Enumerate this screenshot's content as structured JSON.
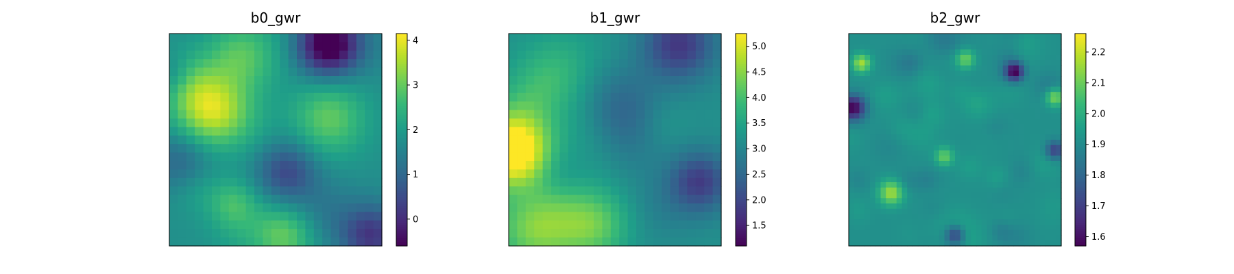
{
  "figure": {
    "background": "#ffffff",
    "colormap": "viridis",
    "colormap_stops": [
      "#440154",
      "#482878",
      "#3e4989",
      "#31688e",
      "#26828e",
      "#1f9e89",
      "#35b779",
      "#6ece58",
      "#b5de2b",
      "#fde725"
    ]
  },
  "chart_data": [
    {
      "type": "heatmap",
      "title": "b0_gwr",
      "xlabel": "",
      "ylabel": "",
      "grid": false,
      "axis_ticks": "hidden",
      "grid_size": [
        25,
        25
      ],
      "colorbar": {
        "vmin": -0.6,
        "vmax": 4.15,
        "ticks": [
          0,
          1,
          2,
          3,
          4
        ],
        "tick_labels": [
          "0",
          "1",
          "2",
          "3",
          "4"
        ]
      },
      "seed": 11,
      "features": [
        {
          "x": 0.2,
          "y": 0.35,
          "amp": 2.2,
          "s": 0.12
        },
        {
          "x": 0.75,
          "y": 0.4,
          "amp": 1.2,
          "s": 0.12
        },
        {
          "x": 0.55,
          "y": 0.95,
          "amp": 1.2,
          "s": 0.1
        },
        {
          "x": 0.3,
          "y": 0.8,
          "amp": 0.8,
          "s": 0.08
        },
        {
          "x": 0.35,
          "y": 0.1,
          "amp": 1.0,
          "s": 0.12
        },
        {
          "x": 0.75,
          "y": 0.05,
          "amp": -2.8,
          "s": 0.1
        },
        {
          "x": 0.55,
          "y": 0.65,
          "amp": -1.3,
          "s": 0.1
        },
        {
          "x": 0.95,
          "y": 0.95,
          "amp": -1.6,
          "s": 0.1
        },
        {
          "x": 0.05,
          "y": 0.6,
          "amp": -0.8,
          "s": 0.1
        },
        {
          "x": 0.02,
          "y": 0.2,
          "amp": -0.7,
          "s": 0.07
        }
      ]
    },
    {
      "type": "heatmap",
      "title": "b1_gwr",
      "xlabel": "",
      "ylabel": "",
      "grid": false,
      "axis_ticks": "hidden",
      "grid_size": [
        25,
        25
      ],
      "colorbar": {
        "vmin": 1.1,
        "vmax": 5.25,
        "ticks": [
          1.5,
          2.0,
          2.5,
          3.0,
          3.5,
          4.0,
          4.5,
          5.0
        ],
        "tick_labels": [
          "1.5",
          "2.0",
          "2.5",
          "3.0",
          "3.5",
          "4.0",
          "4.5",
          "5.0"
        ]
      },
      "seed": 23,
      "features": [
        {
          "x": 0.02,
          "y": 0.55,
          "amp": 2.6,
          "s": 0.12
        },
        {
          "x": 0.15,
          "y": 0.9,
          "amp": 1.6,
          "s": 0.14
        },
        {
          "x": 0.4,
          "y": 0.9,
          "amp": 1.0,
          "s": 0.12
        },
        {
          "x": 0.2,
          "y": 0.2,
          "amp": 0.6,
          "s": 0.12
        },
        {
          "x": 0.8,
          "y": 0.05,
          "amp": -1.4,
          "s": 0.12
        },
        {
          "x": 0.9,
          "y": 0.7,
          "amp": -1.3,
          "s": 0.1
        },
        {
          "x": 0.55,
          "y": 0.45,
          "amp": -0.6,
          "s": 0.14
        }
      ]
    },
    {
      "type": "heatmap",
      "title": "b2_gwr",
      "xlabel": "",
      "ylabel": "",
      "grid": false,
      "axis_ticks": "hidden",
      "grid_size": [
        40,
        40
      ],
      "colorbar": {
        "vmin": 1.57,
        "vmax": 2.26,
        "ticks": [
          1.6,
          1.7,
          1.8,
          1.9,
          2.0,
          2.1,
          2.2
        ],
        "tick_labels": [
          "1.6",
          "1.7",
          "1.8",
          "1.9",
          "2.0",
          "2.1",
          "2.2"
        ]
      },
      "seed": 57,
      "features": [
        {
          "x": 0.78,
          "y": 0.18,
          "amp": -0.35,
          "s": 0.03
        },
        {
          "x": 0.02,
          "y": 0.35,
          "amp": -0.35,
          "s": 0.04
        },
        {
          "x": 0.2,
          "y": 0.75,
          "amp": 0.25,
          "s": 0.04
        },
        {
          "x": 0.06,
          "y": 0.14,
          "amp": 0.25,
          "s": 0.03
        },
        {
          "x": 0.97,
          "y": 0.3,
          "amp": 0.22,
          "s": 0.03
        },
        {
          "x": 0.55,
          "y": 0.12,
          "amp": 0.18,
          "s": 0.03
        },
        {
          "x": 0.45,
          "y": 0.58,
          "amp": 0.18,
          "s": 0.03
        },
        {
          "x": 0.97,
          "y": 0.55,
          "amp": -0.22,
          "s": 0.03
        },
        {
          "x": 0.5,
          "y": 0.95,
          "amp": -0.2,
          "s": 0.03
        }
      ]
    }
  ]
}
